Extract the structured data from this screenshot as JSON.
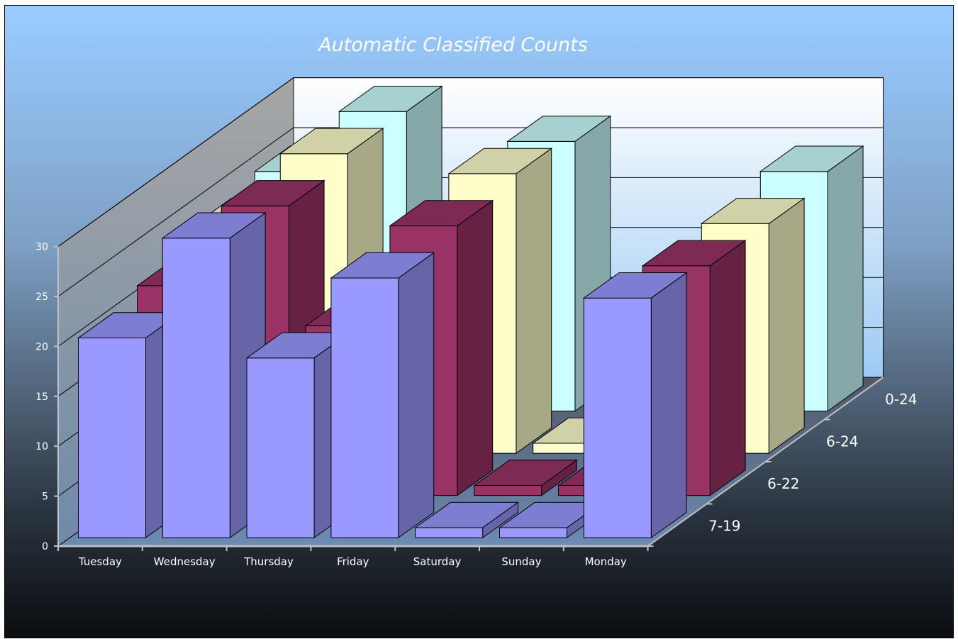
{
  "chart_data": {
    "type": "bar",
    "subtype": "3d-column",
    "title": "Automatic Classified Counts",
    "categories": [
      "Tuesday",
      "Wednesday",
      "Thursday",
      "Friday",
      "Saturday",
      "Sunday",
      "Monday"
    ],
    "series": [
      {
        "name": "7-19",
        "values": [
          20,
          30,
          18,
          26,
          1,
          1,
          24
        ]
      },
      {
        "name": "6-22",
        "values": [
          21,
          29,
          17,
          27,
          1,
          1,
          23
        ]
      },
      {
        "name": "6-24",
        "values": [
          23,
          30,
          17,
          28,
          1,
          1,
          23
        ]
      },
      {
        "name": "0-24",
        "values": [
          24,
          30,
          null,
          27,
          null,
          null,
          24
        ]
      }
    ],
    "ylim": [
      0,
      30
    ],
    "yticks": [
      0,
      5,
      10,
      15,
      20,
      25,
      30
    ],
    "grid": true,
    "colors": {
      "7-19": "#9999ff",
      "6-22": "#993366",
      "6-24": "#ffffcc",
      "0-24": "#ccffff"
    }
  }
}
